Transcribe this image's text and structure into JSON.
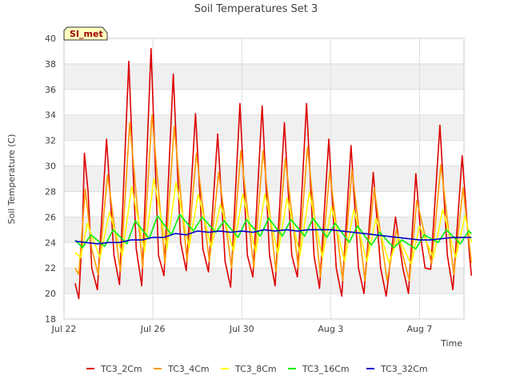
{
  "chart_data": {
    "type": "line",
    "title": "Soil Temperatures Set 3",
    "xlabel": "Time",
    "ylabel": "Soil Temperature (C)",
    "site_badge": "SI_met",
    "ylim": [
      18,
      40
    ],
    "yticks": [
      18,
      20,
      22,
      24,
      26,
      28,
      30,
      32,
      34,
      36,
      38,
      40
    ],
    "xlim": [
      "2024-07-22",
      "2024-08-09"
    ],
    "xticks": [
      {
        "date": "2024-07-22",
        "label": "Jul 22"
      },
      {
        "date": "2024-07-26",
        "label": "Jul 26"
      },
      {
        "date": "2024-07-30",
        "label": "Jul 30"
      },
      {
        "date": "2024-08-03",
        "label": "Aug 3"
      },
      {
        "date": "2024-08-07",
        "label": "Aug 7"
      }
    ],
    "grid": true,
    "legend_position": "bottom",
    "background_bands": "alternating gray bands every 2 °C",
    "series": [
      {
        "name": "TC3_2Cm",
        "color": "#dd0000",
        "points": [
          [
            "2024-07-22T12:00",
            20.8
          ],
          [
            "2024-07-22T14:00",
            20.2
          ],
          [
            "2024-07-22T16:00",
            19.6
          ],
          [
            "2024-07-22T20:00",
            25.0
          ],
          [
            "2024-07-22T22:00",
            31.0
          ],
          [
            "2024-07-23T02:00",
            28.0
          ],
          [
            "2024-07-23T06:00",
            22.0
          ],
          [
            "2024-07-23T12:00",
            20.3
          ],
          [
            "2024-07-23T22:00",
            32.1
          ],
          [
            "2024-07-24T06:00",
            23.0
          ],
          [
            "2024-07-24T12:00",
            20.7
          ],
          [
            "2024-07-24T22:00",
            38.2
          ],
          [
            "2024-07-25T06:00",
            23.5
          ],
          [
            "2024-07-25T12:00",
            20.6
          ],
          [
            "2024-07-25T22:00",
            39.2
          ],
          [
            "2024-07-26T06:00",
            23.0
          ],
          [
            "2024-07-26T12:00",
            21.4
          ],
          [
            "2024-07-26T22:00",
            37.2
          ],
          [
            "2024-07-27T06:00",
            24.0
          ],
          [
            "2024-07-27T12:00",
            21.8
          ],
          [
            "2024-07-27T22:00",
            34.1
          ],
          [
            "2024-07-28T06:00",
            23.5
          ],
          [
            "2024-07-28T12:00",
            21.7
          ],
          [
            "2024-07-28T22:00",
            32.5
          ],
          [
            "2024-07-29T06:00",
            22.5
          ],
          [
            "2024-07-29T12:00",
            20.5
          ],
          [
            "2024-07-29T22:00",
            34.9
          ],
          [
            "2024-07-30T06:00",
            23.0
          ],
          [
            "2024-07-30T12:00",
            21.3
          ],
          [
            "2024-07-30T22:00",
            34.7
          ],
          [
            "2024-07-31T06:00",
            23.0
          ],
          [
            "2024-07-31T12:00",
            20.6
          ],
          [
            "2024-07-31T22:00",
            33.4
          ],
          [
            "2024-08-01T06:00",
            23.0
          ],
          [
            "2024-08-01T12:00",
            21.3
          ],
          [
            "2024-08-01T22:00",
            34.9
          ],
          [
            "2024-08-02T06:00",
            23.0
          ],
          [
            "2024-08-02T12:00",
            20.4
          ],
          [
            "2024-08-02T22:00",
            32.1
          ],
          [
            "2024-08-03T06:00",
            22.0
          ],
          [
            "2024-08-03T12:00",
            19.8
          ],
          [
            "2024-08-03T22:00",
            31.6
          ],
          [
            "2024-08-04T06:00",
            22.0
          ],
          [
            "2024-08-04T12:00",
            20.0
          ],
          [
            "2024-08-04T22:00",
            29.5
          ],
          [
            "2024-08-05T06:00",
            22.0
          ],
          [
            "2024-08-05T12:00",
            19.8
          ],
          [
            "2024-08-05T22:00",
            26.0
          ],
          [
            "2024-08-06T06:00",
            22.0
          ],
          [
            "2024-08-06T12:00",
            20.0
          ],
          [
            "2024-08-06T20:00",
            29.4
          ],
          [
            "2024-08-07T02:00",
            24.0
          ],
          [
            "2024-08-07T06:00",
            22.0
          ],
          [
            "2024-08-07T12:00",
            21.9
          ],
          [
            "2024-08-07T22:00",
            33.2
          ],
          [
            "2024-08-08T06:00",
            23.0
          ],
          [
            "2024-08-08T12:00",
            20.3
          ],
          [
            "2024-08-08T22:00",
            30.8
          ],
          [
            "2024-08-09T06:00",
            23.0
          ],
          [
            "2024-08-09T08:00",
            21.4
          ]
        ]
      },
      {
        "name": "TC3_4Cm",
        "color": "#ff9900",
        "points": [
          [
            "2024-07-22T12:00",
            22.0
          ],
          [
            "2024-07-22T16:00",
            21.5
          ],
          [
            "2024-07-22T23:00",
            28.2
          ],
          [
            "2024-07-23T06:00",
            23.5
          ],
          [
            "2024-07-23T13:00",
            21.5
          ],
          [
            "2024-07-23T23:00",
            29.3
          ],
          [
            "2024-07-24T13:00",
            21.7
          ],
          [
            "2024-07-24T23:00",
            33.4
          ],
          [
            "2024-07-25T13:00",
            22.0
          ],
          [
            "2024-07-25T23:00",
            34.0
          ],
          [
            "2024-07-26T13:00",
            22.3
          ],
          [
            "2024-07-26T23:00",
            33.1
          ],
          [
            "2024-07-27T13:00",
            22.5
          ],
          [
            "2024-07-27T23:00",
            31.0
          ],
          [
            "2024-07-28T13:00",
            22.5
          ],
          [
            "2024-07-28T23:00",
            29.5
          ],
          [
            "2024-07-29T13:00",
            22.0
          ],
          [
            "2024-07-29T23:00",
            31.2
          ],
          [
            "2024-07-30T13:00",
            22.0
          ],
          [
            "2024-07-30T23:00",
            31.2
          ],
          [
            "2024-07-31T13:00",
            21.7
          ],
          [
            "2024-07-31T23:00",
            30.6
          ],
          [
            "2024-08-01T13:00",
            22.0
          ],
          [
            "2024-08-01T23:00",
            31.5
          ],
          [
            "2024-08-02T13:00",
            21.3
          ],
          [
            "2024-08-02T23:00",
            29.6
          ],
          [
            "2024-08-03T13:00",
            21.0
          ],
          [
            "2024-08-03T23:00",
            29.7
          ],
          [
            "2024-08-04T13:00",
            21.0
          ],
          [
            "2024-08-04T23:00",
            28.3
          ],
          [
            "2024-08-05T13:00",
            21.0
          ],
          [
            "2024-08-05T23:00",
            25.0
          ],
          [
            "2024-08-06T13:00",
            21.0
          ],
          [
            "2024-08-06T21:00",
            27.3
          ],
          [
            "2024-08-07T13:00",
            22.3
          ],
          [
            "2024-08-07T23:00",
            30.1
          ],
          [
            "2024-08-08T13:00",
            21.5
          ],
          [
            "2024-08-08T23:00",
            28.3
          ],
          [
            "2024-08-09T08:00",
            22.4
          ]
        ]
      },
      {
        "name": "TC3_8Cm",
        "color": "#ffff00",
        "points": [
          [
            "2024-07-22T12:00",
            23.2
          ],
          [
            "2024-07-22T18:00",
            22.8
          ],
          [
            "2024-07-23T01:00",
            25.5
          ],
          [
            "2024-07-23T15:00",
            22.8
          ],
          [
            "2024-07-24T01:00",
            26.4
          ],
          [
            "2024-07-24T15:00",
            23.0
          ],
          [
            "2024-07-25T01:00",
            28.4
          ],
          [
            "2024-07-25T15:00",
            23.3
          ],
          [
            "2024-07-26T01:00",
            29.0
          ],
          [
            "2024-07-26T15:00",
            23.5
          ],
          [
            "2024-07-27T01:00",
            28.7
          ],
          [
            "2024-07-27T15:00",
            23.6
          ],
          [
            "2024-07-28T01:00",
            27.8
          ],
          [
            "2024-07-28T15:00",
            23.6
          ],
          [
            "2024-07-29T01:00",
            27.0
          ],
          [
            "2024-07-29T15:00",
            23.3
          ],
          [
            "2024-07-30T01:00",
            27.8
          ],
          [
            "2024-07-30T15:00",
            23.2
          ],
          [
            "2024-07-31T01:00",
            27.8
          ],
          [
            "2024-07-31T15:00",
            23.1
          ],
          [
            "2024-08-01T01:00",
            27.5
          ],
          [
            "2024-08-01T15:00",
            23.0
          ],
          [
            "2024-08-02T01:00",
            28.0
          ],
          [
            "2024-08-02T15:00",
            22.8
          ],
          [
            "2024-08-03T01:00",
            26.8
          ],
          [
            "2024-08-03T15:00",
            22.5
          ],
          [
            "2024-08-04T01:00",
            26.6
          ],
          [
            "2024-08-04T15:00",
            22.5
          ],
          [
            "2024-08-05T01:00",
            25.9
          ],
          [
            "2024-08-05T15:00",
            22.4
          ],
          [
            "2024-08-06T01:00",
            24.4
          ],
          [
            "2024-08-06T15:00",
            22.3
          ],
          [
            "2024-08-07T00:00",
            25.3
          ],
          [
            "2024-08-07T15:00",
            22.8
          ],
          [
            "2024-08-08T01:00",
            26.6
          ],
          [
            "2024-08-08T15:00",
            22.8
          ],
          [
            "2024-08-09T01:00",
            26.1
          ],
          [
            "2024-08-09T08:00",
            24.0
          ]
        ]
      },
      {
        "name": "TC3_16Cm",
        "color": "#00ee00",
        "points": [
          [
            "2024-07-22T12:00",
            24.2
          ],
          [
            "2024-07-22T20:00",
            23.6
          ],
          [
            "2024-07-23T05:00",
            24.6
          ],
          [
            "2024-07-23T20:00",
            23.7
          ],
          [
            "2024-07-24T05:00",
            25.0
          ],
          [
            "2024-07-24T20:00",
            23.9
          ],
          [
            "2024-07-25T05:00",
            25.7
          ],
          [
            "2024-07-25T20:00",
            24.3
          ],
          [
            "2024-07-26T05:00",
            26.1
          ],
          [
            "2024-07-26T20:00",
            24.6
          ],
          [
            "2024-07-27T05:00",
            26.2
          ],
          [
            "2024-07-27T20:00",
            24.9
          ],
          [
            "2024-07-28T05:00",
            26.0
          ],
          [
            "2024-07-28T20:00",
            24.8
          ],
          [
            "2024-07-29T05:00",
            25.7
          ],
          [
            "2024-07-29T20:00",
            24.4
          ],
          [
            "2024-07-30T05:00",
            25.8
          ],
          [
            "2024-07-30T20:00",
            24.5
          ],
          [
            "2024-07-31T05:00",
            25.9
          ],
          [
            "2024-07-31T20:00",
            24.5
          ],
          [
            "2024-08-01T05:00",
            25.8
          ],
          [
            "2024-08-01T20:00",
            24.5
          ],
          [
            "2024-08-02T05:00",
            25.9
          ],
          [
            "2024-08-02T20:00",
            24.4
          ],
          [
            "2024-08-03T05:00",
            25.5
          ],
          [
            "2024-08-03T20:00",
            24.0
          ],
          [
            "2024-08-04T05:00",
            25.3
          ],
          [
            "2024-08-04T20:00",
            23.8
          ],
          [
            "2024-08-05T05:00",
            24.8
          ],
          [
            "2024-08-05T20:00",
            23.6
          ],
          [
            "2024-08-06T05:00",
            24.2
          ],
          [
            "2024-08-06T20:00",
            23.5
          ],
          [
            "2024-08-07T05:00",
            24.6
          ],
          [
            "2024-08-07T20:00",
            24.0
          ],
          [
            "2024-08-08T05:00",
            25.0
          ],
          [
            "2024-08-08T20:00",
            23.9
          ],
          [
            "2024-08-09T05:00",
            24.9
          ],
          [
            "2024-08-09T08:00",
            24.7
          ]
        ]
      },
      {
        "name": "TC3_32Cm",
        "color": "#0000cc",
        "points": [
          [
            "2024-07-22T12:00",
            24.1
          ],
          [
            "2024-07-23T00:00",
            24.0
          ],
          [
            "2024-07-23T12:00",
            23.9
          ],
          [
            "2024-07-24T00:00",
            24.0
          ],
          [
            "2024-07-24T12:00",
            24.0
          ],
          [
            "2024-07-25T00:00",
            24.2
          ],
          [
            "2024-07-25T12:00",
            24.2
          ],
          [
            "2024-07-26T00:00",
            24.4
          ],
          [
            "2024-07-26T12:00",
            24.4
          ],
          [
            "2024-07-27T00:00",
            24.7
          ],
          [
            "2024-07-27T12:00",
            24.6
          ],
          [
            "2024-07-28T00:00",
            24.9
          ],
          [
            "2024-07-28T12:00",
            24.8
          ],
          [
            "2024-07-29T00:00",
            24.9
          ],
          [
            "2024-07-29T12:00",
            24.8
          ],
          [
            "2024-07-30T00:00",
            24.9
          ],
          [
            "2024-07-30T12:00",
            24.8
          ],
          [
            "2024-07-31T00:00",
            25.0
          ],
          [
            "2024-07-31T12:00",
            24.9
          ],
          [
            "2024-08-01T00:00",
            25.0
          ],
          [
            "2024-08-01T12:00",
            24.9
          ],
          [
            "2024-08-02T00:00",
            25.0
          ],
          [
            "2024-08-02T12:00",
            25.0
          ],
          [
            "2024-08-03T00:00",
            25.0
          ],
          [
            "2024-08-03T12:00",
            24.9
          ],
          [
            "2024-08-04T00:00",
            24.8
          ],
          [
            "2024-08-04T12:00",
            24.7
          ],
          [
            "2024-08-05T00:00",
            24.6
          ],
          [
            "2024-08-05T12:00",
            24.5
          ],
          [
            "2024-08-06T00:00",
            24.4
          ],
          [
            "2024-08-06T12:00",
            24.3
          ],
          [
            "2024-08-07T00:00",
            24.2
          ],
          [
            "2024-08-07T12:00",
            24.2
          ],
          [
            "2024-08-08T00:00",
            24.3
          ],
          [
            "2024-08-08T12:00",
            24.4
          ],
          [
            "2024-08-09T00:00",
            24.4
          ],
          [
            "2024-08-09T08:00",
            24.4
          ]
        ]
      }
    ]
  }
}
